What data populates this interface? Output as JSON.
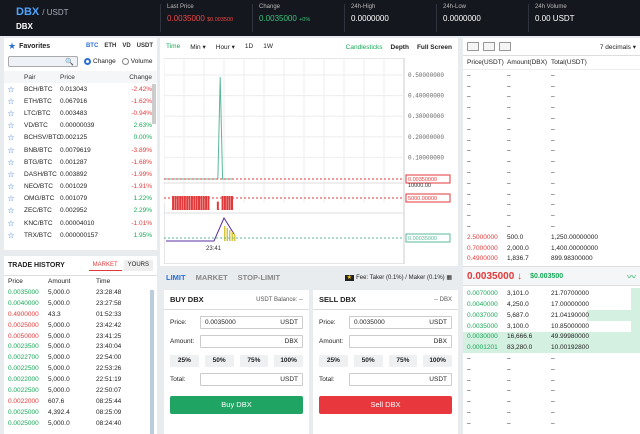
{
  "header": {
    "pair_base": "DBX",
    "pair_quote": "/ USDT",
    "sub": "DBX",
    "stats": [
      {
        "label": "Last Price",
        "value": "0.0035000",
        "extra": "$0.003500",
        "cls": "red"
      },
      {
        "label": "Change",
        "value": "0.0035000",
        "extra": "+0%",
        "cls": ""
      },
      {
        "label": "24h-High",
        "value": "0.0000000",
        "extra": "",
        "cls": "white"
      },
      {
        "label": "24h-Low",
        "value": "0.0000000",
        "extra": "",
        "cls": "white"
      },
      {
        "label": "24h Volume",
        "value": "0.00 USDT",
        "extra": "",
        "cls": "white"
      }
    ]
  },
  "favorites": {
    "title": "Favorites",
    "tabs": [
      "BTC",
      "ETH",
      "VD",
      "USDT"
    ],
    "search_value": "",
    "radio_change": "Change",
    "radio_volume": "Volume",
    "cols": [
      "Pair",
      "Price",
      "Change"
    ],
    "rows": [
      [
        "BCH/BTC",
        "0.013043",
        "-2.42%",
        "dn"
      ],
      [
        "ETH/BTC",
        "0.067916",
        "-1.62%",
        "dn"
      ],
      [
        "LTC/BTC",
        "0.003483",
        "-0.94%",
        "dn"
      ],
      [
        "VD/BTC",
        "0.00000039",
        "2.63%",
        "up"
      ],
      [
        "BCHSV/BTC",
        "0.002125",
        "0.00%",
        "up"
      ],
      [
        "BNB/BTC",
        "0.0079619",
        "-3.89%",
        "dn"
      ],
      [
        "BTG/BTC",
        "0.001287",
        "-1.68%",
        "dn"
      ],
      [
        "DASH/BTC",
        "0.003892",
        "-1.99%",
        "dn"
      ],
      [
        "NEO/BTC",
        "0.001029",
        "-1.91%",
        "dn"
      ],
      [
        "OMG/BTC",
        "0.001079",
        "1.22%",
        "up"
      ],
      [
        "ZEC/BTC",
        "0.002952",
        "2.29%",
        "up"
      ],
      [
        "KNC/BTC",
        "0.00004010",
        "-1.01%",
        "dn"
      ],
      [
        "TRX/BTC",
        "0.000000157",
        "1.95%",
        "up"
      ]
    ]
  },
  "history": {
    "title": "TRADE HISTORY",
    "tab_market": "MARKET",
    "tab_yours": "YOURS",
    "cols": [
      "Price",
      "Amount",
      "Time"
    ],
    "rows": [
      [
        "0.0035000",
        "5,000.0",
        "23:28:48",
        "up"
      ],
      [
        "0.0040000",
        "5,000.0",
        "23:27:58",
        "up"
      ],
      [
        "0.4900000",
        "43.3",
        "01:52:33",
        "dn"
      ],
      [
        "0.0025000",
        "5,000.0",
        "23:42:42",
        "dn"
      ],
      [
        "0.0050000",
        "5,000.0",
        "23:41:25",
        "dn"
      ],
      [
        "0.0023500",
        "5,000.0",
        "23:40:04",
        "up"
      ],
      [
        "0.0022700",
        "5,000.0",
        "22:54:00",
        "up"
      ],
      [
        "0.0022500",
        "5,000.0",
        "22:53:26",
        "up"
      ],
      [
        "0.0022000",
        "5,000.0",
        "22:51:19",
        "up"
      ],
      [
        "0.0022500",
        "5,000.0",
        "22:50:07",
        "up"
      ],
      [
        "0.0022000",
        "607.6",
        "08:25:44",
        "dn"
      ],
      [
        "0.0025000",
        "4,392.4",
        "08:25:09",
        "up"
      ],
      [
        "0.0025000",
        "5,000.0",
        "08:24:40",
        "up"
      ]
    ]
  },
  "chart_toolbar": {
    "items": [
      "Time",
      "Min ▾",
      "Hour ▾",
      "1D",
      "1W"
    ],
    "right": [
      "Candlesticks",
      "Depth",
      "Full Screen"
    ]
  },
  "chart_data": {
    "type": "line",
    "yticks": [
      "0.50000000",
      "0.40000000",
      "0.30000000",
      "0.20000000",
      "0.10000000"
    ],
    "price_tag": "0.00350000",
    "vol_axis": "10000.00",
    "vol_tag": "5000.00000",
    "ind_tag": "0.00035000",
    "time_label": "23:41",
    "price_series": [
      0,
      0,
      0,
      0,
      0,
      0,
      0,
      0,
      0,
      0,
      0,
      0,
      0,
      0,
      0,
      0,
      0,
      0,
      0,
      0,
      0,
      0,
      0,
      0.49,
      0,
      0,
      0,
      0,
      0
    ],
    "volume_series": [
      0,
      0,
      0,
      0.5,
      0.5,
      0.5,
      0.5,
      0.5,
      0.5,
      0.5,
      0.5,
      0.5,
      0.5,
      0.5,
      0.5,
      0.5,
      0.5,
      0.5,
      0.5,
      0,
      0,
      0,
      0.3,
      0.004,
      0.5,
      0.5,
      0.5,
      0.5,
      0.5
    ]
  },
  "trade_tabs": {
    "limit": "LIMIT",
    "market": "MARKET",
    "stoplimit": "STOP-LIMIT",
    "fee": "Fee: Taker (0.1%) / Maker (0.1%)"
  },
  "buy": {
    "title": "BUY DBX",
    "balance": "USDT Balance: --",
    "price_label": "Price:",
    "price": "0.0035000",
    "price_unit": "USDT",
    "amount_label": "Amount:",
    "amount_unit": "DBX",
    "pcts": [
      "25%",
      "50%",
      "75%",
      "100%"
    ],
    "total_label": "Total:",
    "total_unit": "USDT",
    "button": "Buy DBX"
  },
  "sell": {
    "title": "SELL DBX",
    "balance": "-- DBX",
    "price_label": "Price:",
    "price": "0.0035000",
    "price_unit": "USDT",
    "amount_label": "Amount:",
    "amount_unit": "DBX",
    "pcts": [
      "25%",
      "50%",
      "75%",
      "100%"
    ],
    "total_label": "Total:",
    "total_unit": "USDT",
    "button": "Sell DBX"
  },
  "orderbook": {
    "decimals": "7 decimals ▾",
    "cols": [
      "Price(USDT)",
      "Amount(DBX)",
      "Total(USDT)"
    ],
    "asks": [
      [
        "–",
        "–",
        "–"
      ],
      [
        "–",
        "–",
        "–"
      ],
      [
        "–",
        "–",
        "–"
      ],
      [
        "–",
        "–",
        "–"
      ],
      [
        "–",
        "–",
        "–"
      ],
      [
        "–",
        "–",
        "–"
      ],
      [
        "–",
        "–",
        "–"
      ],
      [
        "–",
        "–",
        "–"
      ],
      [
        "–",
        "–",
        "–"
      ],
      [
        "–",
        "–",
        "–"
      ],
      [
        "–",
        "–",
        "–"
      ],
      [
        "–",
        "–",
        "–"
      ],
      [
        "–",
        "–",
        "–"
      ],
      [
        "–",
        "–",
        "–"
      ],
      [
        "–",
        "–",
        "–"
      ],
      [
        "2.5000000",
        "500.0",
        "1,250.00000000"
      ],
      [
        "0.7000000",
        "2,000.0",
        "1,400.00000000"
      ],
      [
        "0.4900000",
        "1,836.7",
        "899.98300000"
      ]
    ],
    "last_price": "0.0035000 ↓",
    "last_usd": "$0.003500",
    "bids": [
      [
        "0.0070000",
        "3,101.0",
        "21.70700000",
        0.05
      ],
      [
        "0.0040000",
        "4,250.0",
        "17.00000000",
        0.05
      ],
      [
        "0.0037000",
        "5,687.0",
        "21.04190000",
        0.3
      ],
      [
        "0.0035000",
        "3,100.0",
        "10.85000000",
        0.05
      ],
      [
        "0.0030000",
        "16,666.6",
        "49.99980000",
        1.0
      ],
      [
        "0.0001201",
        "83,280.0",
        "10.00192800",
        1.0
      ],
      [
        "–",
        "–",
        "–",
        0
      ],
      [
        "–",
        "–",
        "–",
        0
      ],
      [
        "–",
        "–",
        "–",
        0
      ],
      [
        "–",
        "–",
        "–",
        0
      ],
      [
        "–",
        "–",
        "–",
        0
      ],
      [
        "–",
        "–",
        "–",
        0
      ],
      [
        "–",
        "–",
        "–",
        0
      ]
    ]
  }
}
